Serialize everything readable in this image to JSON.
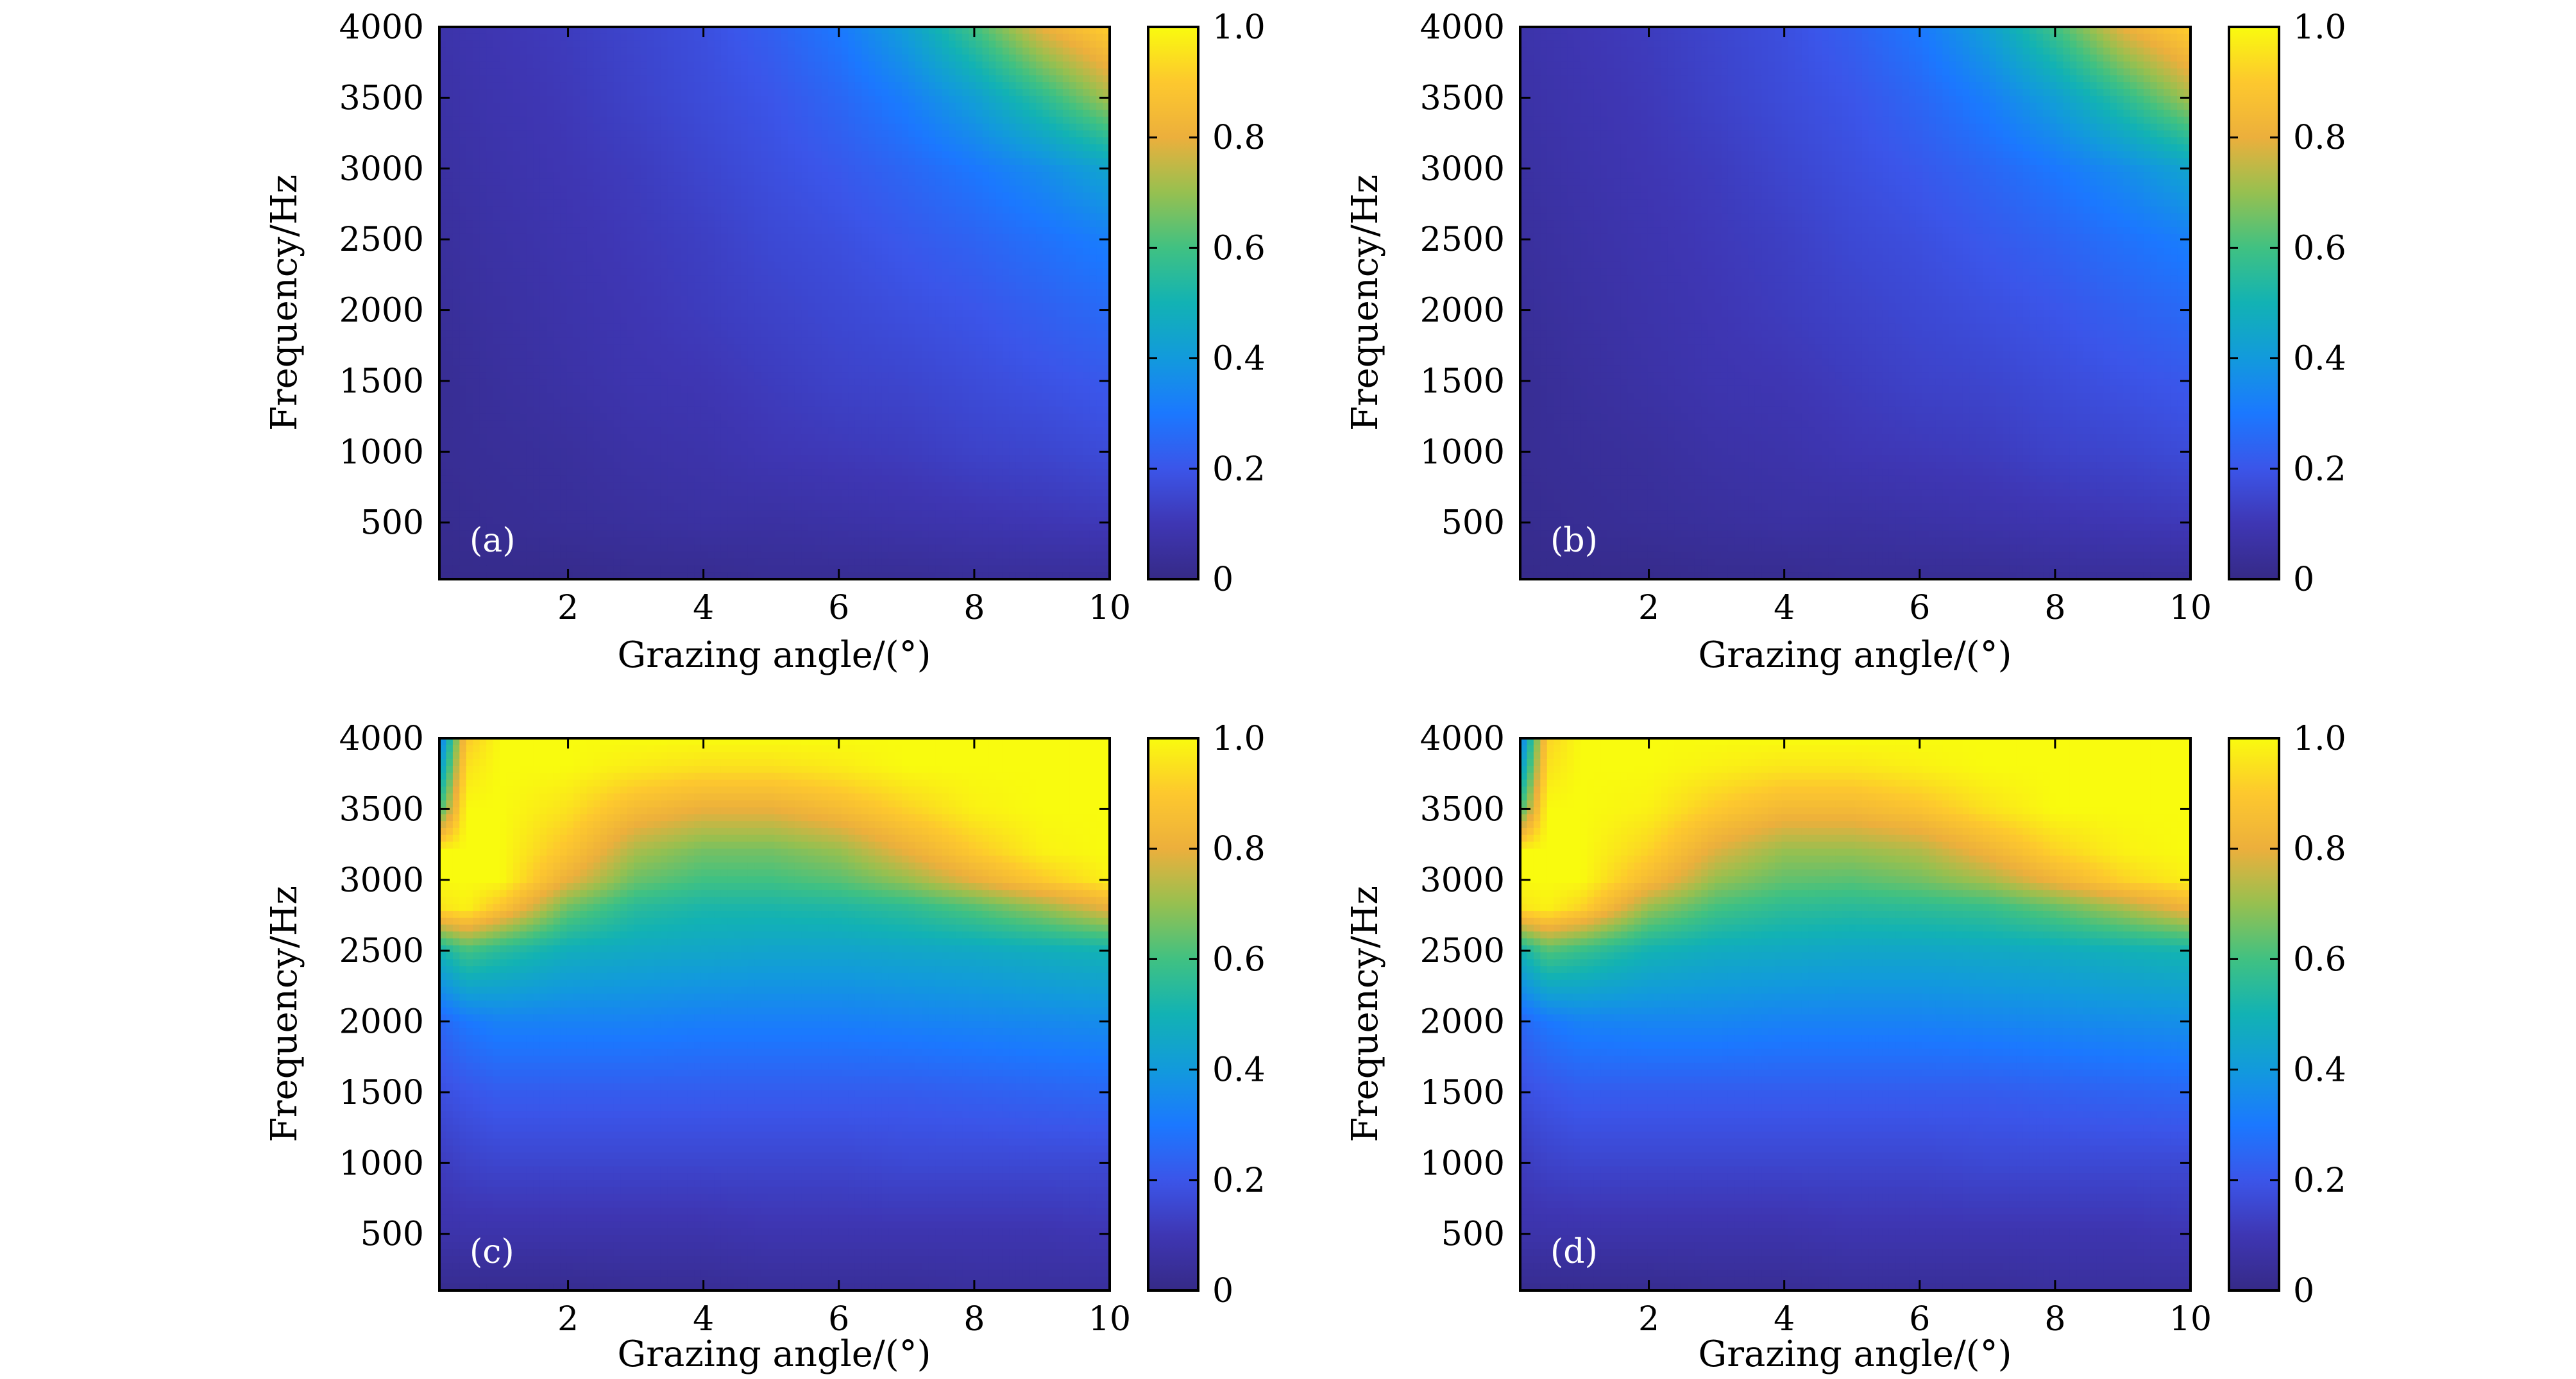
{
  "chart_data": [
    {
      "type": "heatmap",
      "panel_label": "(a)",
      "xlabel": "Grazing angle/(°)",
      "ylabel": "Frequency/Hz",
      "xlim": [
        0.1,
        10
      ],
      "ylim": [
        100,
        4000
      ],
      "x_ticks": [
        2,
        4,
        6,
        8,
        10
      ],
      "y_ticks": [
        500,
        1000,
        1500,
        2000,
        2500,
        3000,
        3500,
        4000
      ],
      "colorbar": {
        "range": [
          0,
          1
        ],
        "ticks": [
          "0",
          "0.2",
          "0.4",
          "0.6",
          "0.8",
          "1.0"
        ]
      },
      "colormap": "parula",
      "x": [
        0.1,
        1,
        2,
        3,
        4,
        5,
        6,
        7,
        8,
        9,
        10
      ],
      "y": [
        100,
        500,
        1000,
        1500,
        2000,
        2500,
        3000,
        3500,
        4000
      ],
      "z": [
        [
          0.01,
          0.01,
          0.01,
          0.02,
          0.02,
          0.03,
          0.03,
          0.03,
          0.04,
          0.04,
          0.04
        ],
        [
          0.02,
          0.03,
          0.04,
          0.05,
          0.06,
          0.06,
          0.07,
          0.08,
          0.09,
          0.1,
          0.11
        ],
        [
          0.03,
          0.04,
          0.05,
          0.07,
          0.08,
          0.1,
          0.11,
          0.12,
          0.14,
          0.15,
          0.17
        ],
        [
          0.03,
          0.05,
          0.07,
          0.09,
          0.1,
          0.12,
          0.14,
          0.15,
          0.17,
          0.19,
          0.21
        ],
        [
          0.04,
          0.06,
          0.08,
          0.1,
          0.12,
          0.14,
          0.16,
          0.18,
          0.2,
          0.23,
          0.26
        ],
        [
          0.05,
          0.07,
          0.09,
          0.11,
          0.13,
          0.16,
          0.18,
          0.21,
          0.24,
          0.28,
          0.32
        ],
        [
          0.06,
          0.08,
          0.1,
          0.12,
          0.15,
          0.18,
          0.21,
          0.25,
          0.3,
          0.36,
          0.44
        ],
        [
          0.07,
          0.09,
          0.11,
          0.14,
          0.17,
          0.2,
          0.25,
          0.32,
          0.42,
          0.56,
          0.72
        ],
        [
          0.08,
          0.1,
          0.12,
          0.15,
          0.18,
          0.23,
          0.3,
          0.42,
          0.6,
          0.8,
          0.92
        ]
      ]
    },
    {
      "type": "heatmap",
      "panel_label": "(b)",
      "xlabel": "Grazing angle/(°)",
      "ylabel": "Frequency/Hz",
      "xlim": [
        0.1,
        10
      ],
      "ylim": [
        100,
        4000
      ],
      "x_ticks": [
        2,
        4,
        6,
        8,
        10
      ],
      "y_ticks": [
        500,
        1000,
        1500,
        2000,
        2500,
        3000,
        3500,
        4000
      ],
      "colorbar": {
        "range": [
          0,
          1
        ],
        "ticks": [
          "0",
          "0.2",
          "0.4",
          "0.6",
          "0.8",
          "1.0"
        ]
      },
      "colormap": "parula",
      "x": [
        0.1,
        1,
        2,
        3,
        4,
        5,
        6,
        7,
        8,
        9,
        10
      ],
      "y": [
        100,
        500,
        1000,
        1500,
        2000,
        2500,
        3000,
        3500,
        4000
      ],
      "z": [
        [
          0.01,
          0.01,
          0.01,
          0.02,
          0.02,
          0.03,
          0.03,
          0.03,
          0.04,
          0.04,
          0.04
        ],
        [
          0.02,
          0.03,
          0.04,
          0.05,
          0.06,
          0.06,
          0.07,
          0.08,
          0.09,
          0.1,
          0.11
        ],
        [
          0.03,
          0.04,
          0.05,
          0.07,
          0.08,
          0.1,
          0.11,
          0.12,
          0.14,
          0.15,
          0.17
        ],
        [
          0.03,
          0.05,
          0.07,
          0.09,
          0.1,
          0.12,
          0.14,
          0.15,
          0.17,
          0.19,
          0.21
        ],
        [
          0.04,
          0.06,
          0.08,
          0.1,
          0.12,
          0.14,
          0.16,
          0.18,
          0.2,
          0.23,
          0.26
        ],
        [
          0.05,
          0.07,
          0.09,
          0.11,
          0.13,
          0.16,
          0.18,
          0.21,
          0.24,
          0.28,
          0.32
        ],
        [
          0.06,
          0.08,
          0.1,
          0.12,
          0.15,
          0.18,
          0.21,
          0.25,
          0.3,
          0.36,
          0.44
        ],
        [
          0.07,
          0.09,
          0.11,
          0.14,
          0.17,
          0.2,
          0.25,
          0.32,
          0.42,
          0.56,
          0.72
        ],
        [
          0.08,
          0.1,
          0.12,
          0.15,
          0.18,
          0.23,
          0.3,
          0.42,
          0.6,
          0.8,
          0.92
        ]
      ]
    },
    {
      "type": "heatmap",
      "panel_label": "(c)",
      "xlabel": "Grazing angle/(°)",
      "ylabel": "Frequency/Hz",
      "xlim": [
        0.1,
        10
      ],
      "ylim": [
        100,
        4000
      ],
      "x_ticks": [
        2,
        4,
        6,
        8,
        10
      ],
      "y_ticks": [
        500,
        1000,
        1500,
        2000,
        2500,
        3000,
        3500,
        4000
      ],
      "colorbar": {
        "range": [
          0,
          1
        ],
        "ticks": [
          "0",
          "0.2",
          "0.4",
          "0.6",
          "0.8",
          "1.0"
        ]
      },
      "colormap": "parula",
      "x": [
        0.1,
        0.5,
        1,
        2,
        3,
        4,
        5,
        6,
        7,
        8,
        9,
        10
      ],
      "y": [
        100,
        500,
        1000,
        1500,
        2000,
        2500,
        2800,
        3000,
        3200,
        3500,
        3800,
        4000
      ],
      "z": [
        [
          0.02,
          0.02,
          0.02,
          0.02,
          0.03,
          0.03,
          0.04,
          0.04,
          0.04,
          0.05,
          0.05,
          0.05
        ],
        [
          0.08,
          0.08,
          0.08,
          0.08,
          0.08,
          0.08,
          0.09,
          0.09,
          0.09,
          0.09,
          0.09,
          0.1
        ],
        [
          0.12,
          0.14,
          0.15,
          0.15,
          0.15,
          0.15,
          0.15,
          0.15,
          0.16,
          0.16,
          0.16,
          0.16
        ],
        [
          0.18,
          0.2,
          0.22,
          0.22,
          0.22,
          0.22,
          0.22,
          0.22,
          0.22,
          0.23,
          0.24,
          0.25
        ],
        [
          0.25,
          0.3,
          0.33,
          0.33,
          0.33,
          0.32,
          0.32,
          0.32,
          0.33,
          0.34,
          0.35,
          0.36
        ],
        [
          0.5,
          0.6,
          0.55,
          0.48,
          0.46,
          0.45,
          0.44,
          0.44,
          0.45,
          0.46,
          0.48,
          0.5
        ],
        [
          0.95,
          0.98,
          0.88,
          0.65,
          0.55,
          0.52,
          0.52,
          0.53,
          0.56,
          0.62,
          0.7,
          0.8
        ],
        [
          1.0,
          1.0,
          1.0,
          0.8,
          0.65,
          0.6,
          0.6,
          0.63,
          0.7,
          0.8,
          0.9,
          0.98
        ],
        [
          1.0,
          1.0,
          1.0,
          0.88,
          0.72,
          0.66,
          0.66,
          0.7,
          0.8,
          0.9,
          0.98,
          1.0
        ],
        [
          0.6,
          1.0,
          1.0,
          0.95,
          0.85,
          0.8,
          0.8,
          0.85,
          0.92,
          0.98,
          1.0,
          1.0
        ],
        [
          0.4,
          0.95,
          1.0,
          1.0,
          0.97,
          0.95,
          0.95,
          0.97,
          1.0,
          1.0,
          1.0,
          1.0
        ],
        [
          0.3,
          0.9,
          1.0,
          1.0,
          1.0,
          1.0,
          1.0,
          1.0,
          1.0,
          1.0,
          1.0,
          1.0
        ]
      ]
    },
    {
      "type": "heatmap",
      "panel_label": "(d)",
      "xlabel": "Grazing angle/(°)",
      "ylabel": "Frequency/Hz",
      "xlim": [
        0.1,
        10
      ],
      "ylim": [
        100,
        4000
      ],
      "x_ticks": [
        2,
        4,
        6,
        8,
        10
      ],
      "y_ticks": [
        500,
        1000,
        1500,
        2000,
        2500,
        3000,
        3500,
        4000
      ],
      "colorbar": {
        "range": [
          0,
          1
        ],
        "ticks": [
          "0",
          "0.2",
          "0.4",
          "0.6",
          "0.8",
          "1.0"
        ]
      },
      "colormap": "parula",
      "x": [
        0.1,
        0.5,
        1,
        2,
        3,
        4,
        5,
        6,
        7,
        8,
        9,
        10
      ],
      "y": [
        100,
        500,
        1000,
        1500,
        2000,
        2500,
        2800,
        3000,
        3200,
        3500,
        3800,
        4000
      ],
      "z": [
        [
          0.02,
          0.02,
          0.02,
          0.02,
          0.03,
          0.03,
          0.04,
          0.04,
          0.04,
          0.05,
          0.05,
          0.05
        ],
        [
          0.08,
          0.08,
          0.08,
          0.08,
          0.08,
          0.08,
          0.09,
          0.09,
          0.09,
          0.09,
          0.09,
          0.1
        ],
        [
          0.12,
          0.14,
          0.15,
          0.15,
          0.15,
          0.15,
          0.15,
          0.15,
          0.16,
          0.16,
          0.16,
          0.16
        ],
        [
          0.18,
          0.2,
          0.22,
          0.22,
          0.22,
          0.22,
          0.22,
          0.22,
          0.22,
          0.23,
          0.24,
          0.25
        ],
        [
          0.25,
          0.3,
          0.33,
          0.34,
          0.34,
          0.33,
          0.33,
          0.33,
          0.34,
          0.35,
          0.36,
          0.37
        ],
        [
          0.5,
          0.62,
          0.58,
          0.5,
          0.47,
          0.46,
          0.45,
          0.45,
          0.46,
          0.47,
          0.49,
          0.51
        ],
        [
          0.95,
          0.98,
          0.92,
          0.7,
          0.6,
          0.56,
          0.55,
          0.56,
          0.58,
          0.64,
          0.72,
          0.82
        ],
        [
          1.0,
          1.0,
          1.0,
          0.85,
          0.7,
          0.64,
          0.63,
          0.66,
          0.72,
          0.82,
          0.92,
          0.98
        ],
        [
          1.0,
          1.0,
          1.0,
          0.92,
          0.78,
          0.7,
          0.7,
          0.73,
          0.82,
          0.92,
          0.98,
          1.0
        ],
        [
          0.6,
          1.0,
          1.0,
          0.98,
          0.9,
          0.84,
          0.84,
          0.88,
          0.95,
          1.0,
          1.0,
          1.0
        ],
        [
          0.4,
          0.95,
          1.0,
          1.0,
          0.98,
          0.96,
          0.96,
          0.98,
          1.0,
          1.0,
          1.0,
          1.0
        ],
        [
          0.3,
          0.92,
          1.0,
          1.0,
          1.0,
          1.0,
          1.0,
          1.0,
          1.0,
          1.0,
          1.0,
          1.0
        ]
      ]
    }
  ]
}
